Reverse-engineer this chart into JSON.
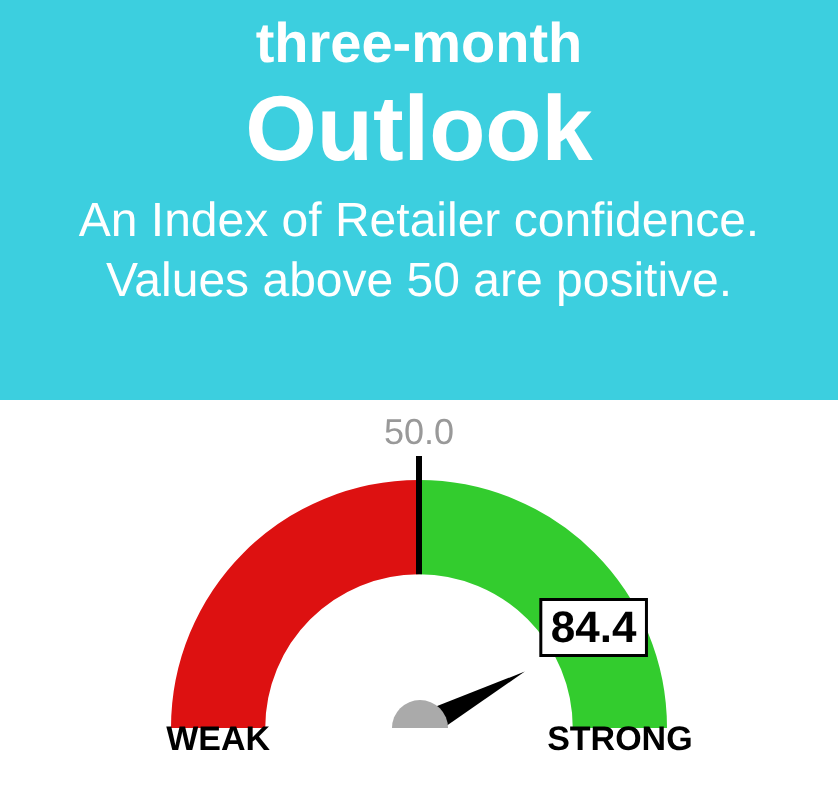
{
  "chart_data": {
    "type": "donut",
    "title": "three-month",
    "subtitle": "Outlook",
    "annotations": [
      "An Index of Retailer confidence. Values above 50 are positive.",
      "50.0",
      "84.4"
    ],
    "categories": [
      "WEAK",
      "STRONG"
    ],
    "values": [
      50,
      50
    ],
    "colors": [
      "#dd1111",
      "#33cc2e"
    ],
    "needle": "STRONG",
    "legend": false
  }
}
